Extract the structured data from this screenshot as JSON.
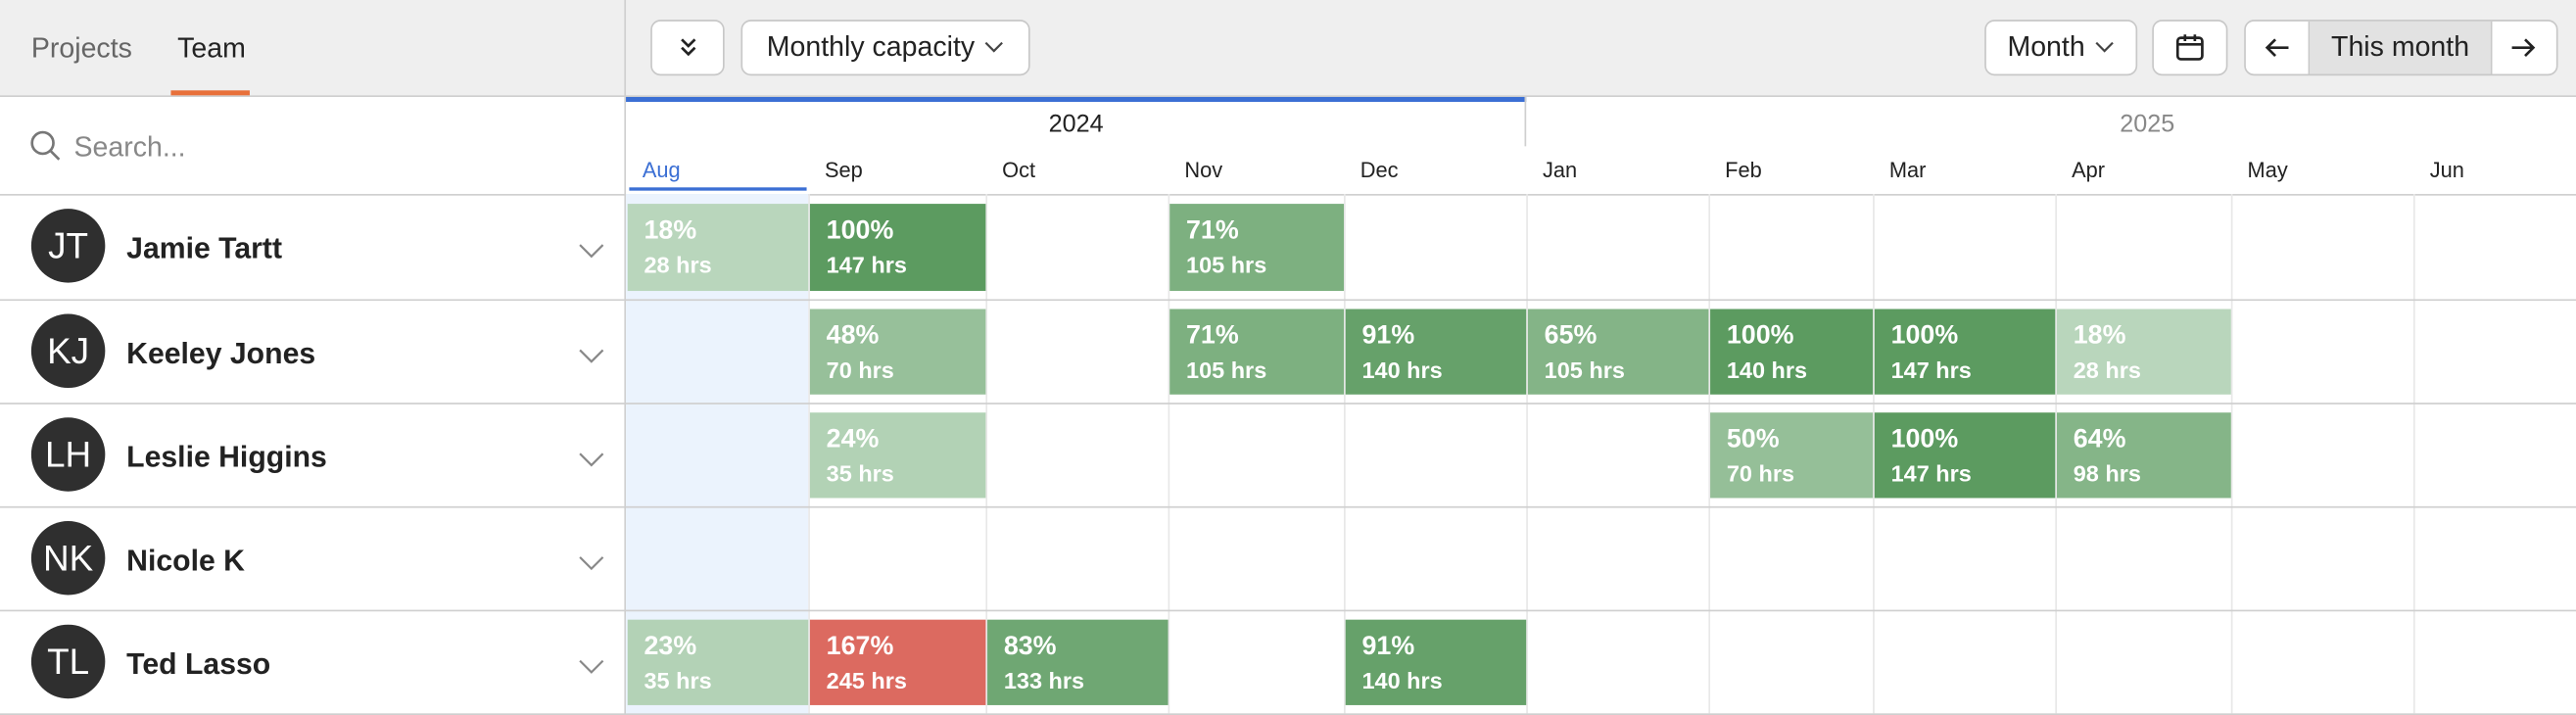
{
  "tabs": [
    "Projects",
    "Team"
  ],
  "toolbar": {
    "view": "Monthly capacity",
    "period": "Month",
    "today": "This month"
  },
  "search_placeholder": "Search...",
  "years": [
    "2024",
    "2025"
  ],
  "months": [
    "Aug",
    "Sep",
    "Oct",
    "Nov",
    "Dec",
    "Jan",
    "Feb",
    "Mar",
    "Apr",
    "May",
    "Jun"
  ],
  "people": [
    {
      "initials": "JT",
      "name": "Jamie Tartt",
      "cells": [
        {
          "pct": "18%",
          "hrs": "28 hrs"
        },
        {
          "pct": "100%",
          "hrs": "147 hrs"
        },
        null,
        {
          "pct": "71%",
          "hrs": "105 hrs"
        },
        null,
        null,
        null,
        null,
        null,
        null,
        null
      ]
    },
    {
      "initials": "KJ",
      "name": "Keeley Jones",
      "cells": [
        null,
        {
          "pct": "48%",
          "hrs": "70 hrs"
        },
        null,
        {
          "pct": "71%",
          "hrs": "105 hrs"
        },
        {
          "pct": "91%",
          "hrs": "140 hrs"
        },
        {
          "pct": "65%",
          "hrs": "105 hrs"
        },
        {
          "pct": "100%",
          "hrs": "140 hrs"
        },
        {
          "pct": "100%",
          "hrs": "147 hrs"
        },
        {
          "pct": "18%",
          "hrs": "28 hrs"
        },
        null,
        null
      ]
    },
    {
      "initials": "LH",
      "name": "Leslie Higgins",
      "cells": [
        null,
        {
          "pct": "24%",
          "hrs": "35 hrs"
        },
        null,
        null,
        null,
        null,
        {
          "pct": "50%",
          "hrs": "70 hrs"
        },
        {
          "pct": "100%",
          "hrs": "147 hrs"
        },
        {
          "pct": "64%",
          "hrs": "98 hrs"
        },
        null,
        null
      ]
    },
    {
      "initials": "NK",
      "name": "Nicole K",
      "cells": [
        null,
        null,
        null,
        null,
        null,
        null,
        null,
        null,
        null,
        null,
        null
      ]
    },
    {
      "initials": "TL",
      "name": "Ted Lasso",
      "cells": [
        {
          "pct": "23%",
          "hrs": "35 hrs"
        },
        {
          "pct": "167%",
          "hrs": "245 hrs"
        },
        {
          "pct": "83%",
          "hrs": "133 hrs"
        },
        null,
        {
          "pct": "91%",
          "hrs": "140 hrs"
        },
        null,
        null,
        null,
        null,
        null,
        null
      ]
    }
  ]
}
